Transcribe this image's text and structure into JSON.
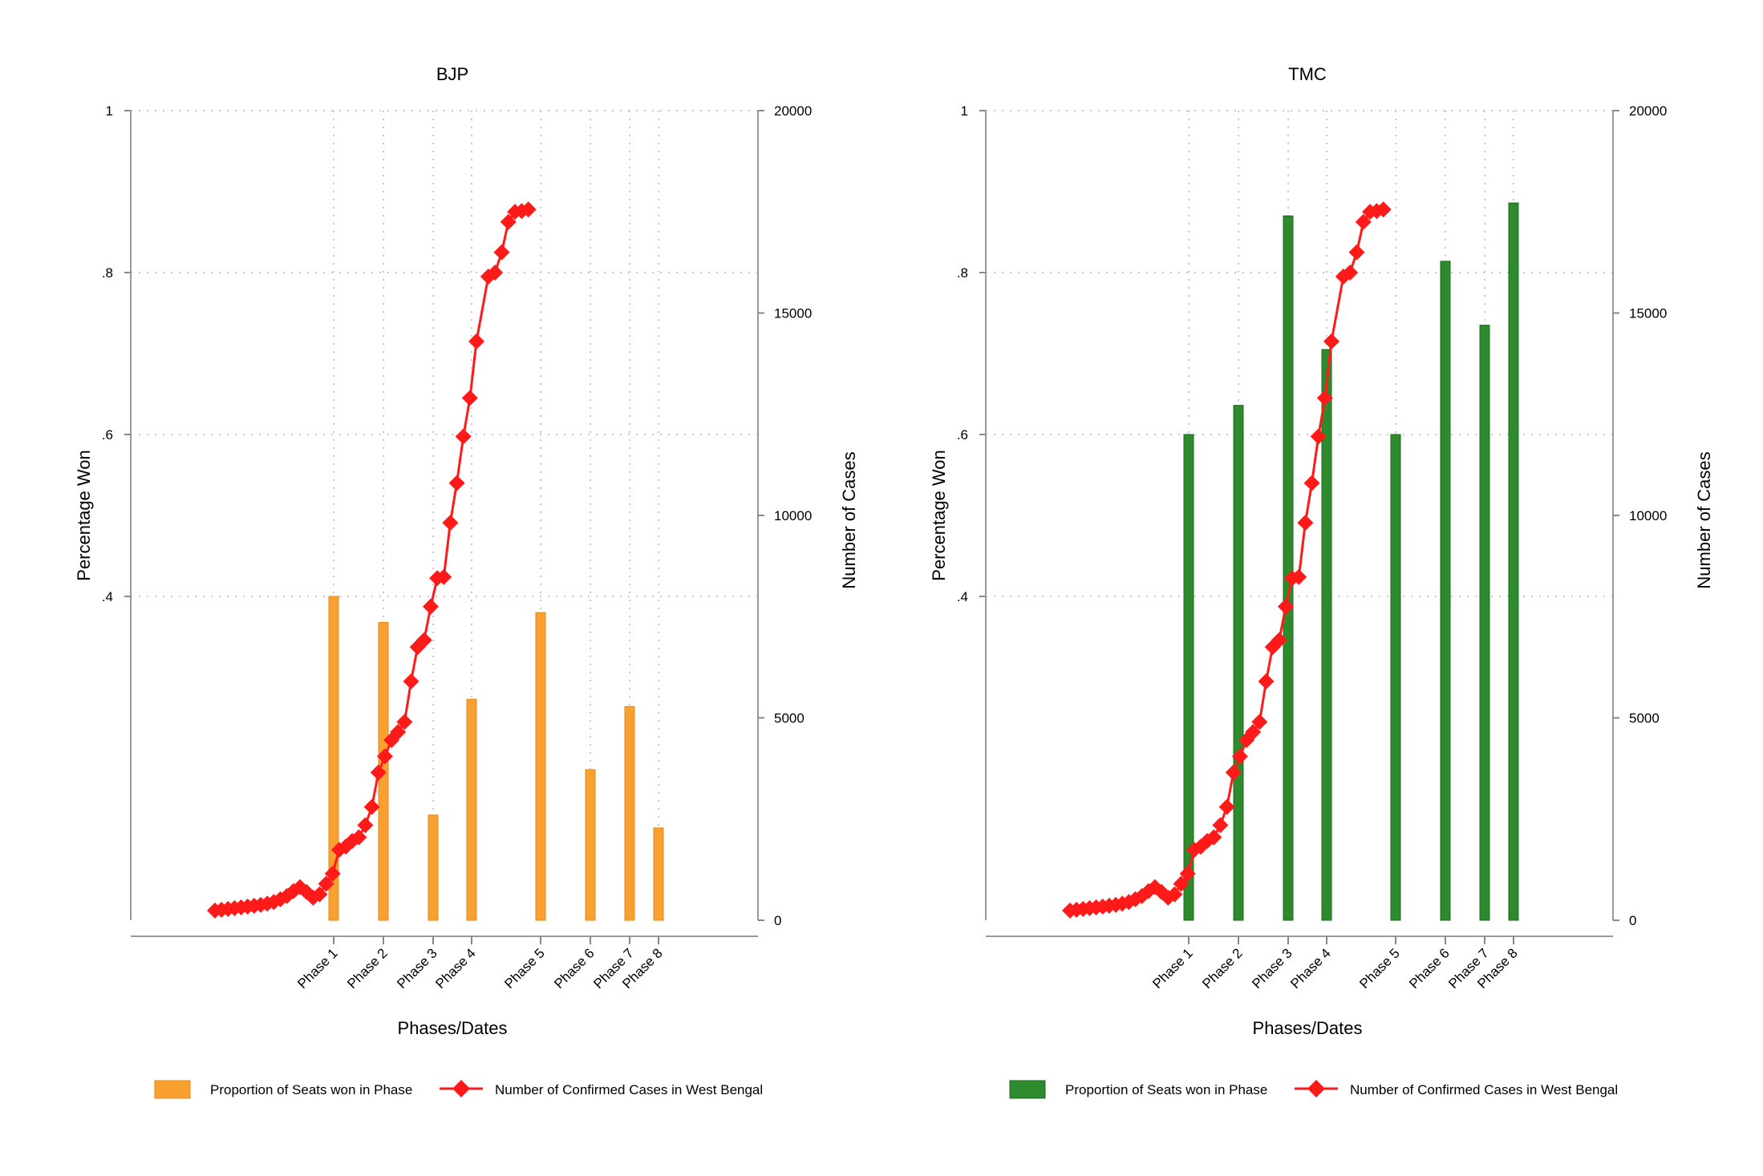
{
  "chart_data": [
    {
      "type": "bar",
      "title": "BJP",
      "xlabel": "Phases/Dates",
      "ylabel": "Percentage Won",
      "y2label": "Number of Cases",
      "ylim": [
        0,
        1
      ],
      "y2lim": [
        0,
        20000
      ],
      "yticks": [
        "1",
        ".8",
        ".6",
        ".4"
      ],
      "y2ticks": [
        "20000",
        "15000",
        "10000",
        "5000",
        "0"
      ],
      "grid": true,
      "legend_position": "bottom",
      "bar_color": "#f9a030",
      "line_color": "#ff1a1a",
      "phases": [
        "Phase 1",
        "Phase 2",
        "Phase 3",
        "Phase 4",
        "Phase 5",
        "Phase 6",
        "Phase 7",
        "Phase 8"
      ],
      "series": [
        {
          "name": "Proportion of Seats won in Phase",
          "kind": "bar",
          "values": [
            0.4,
            0.368,
            0.13,
            0.273,
            0.38,
            0.186,
            0.264,
            0.114
          ]
        },
        {
          "name": "Number of Confirmed Cases in West Bengal",
          "kind": "line",
          "values": [
            240,
            260,
            280,
            300,
            320,
            340,
            360,
            380,
            410,
            450,
            520,
            600,
            720,
            820,
            700,
            560,
            640,
            900,
            1150,
            1740,
            1820,
            1960,
            2050,
            2350,
            2800,
            3650,
            4050,
            4450,
            4650,
            4900,
            5900,
            6750,
            6920,
            7750,
            8450,
            8480,
            9820,
            10800,
            11950,
            12900,
            14300,
            15900,
            16000,
            16500,
            17250,
            17500,
            17520,
            17560
          ]
        }
      ]
    },
    {
      "type": "bar",
      "title": "TMC",
      "xlabel": "Phases/Dates",
      "ylabel": "Percentage Won",
      "y2label": "Number of Cases",
      "ylim": [
        0,
        1
      ],
      "y2lim": [
        0,
        20000
      ],
      "yticks": [
        "1",
        ".8",
        ".6",
        ".4"
      ],
      "y2ticks": [
        "20000",
        "15000",
        "10000",
        "5000",
        "0"
      ],
      "grid": true,
      "legend_position": "bottom",
      "bar_color": "#2d8a2d",
      "line_color": "#ff1a1a",
      "phases": [
        "Phase 1",
        "Phase 2",
        "Phase 3",
        "Phase 4",
        "Phase 5",
        "Phase 6",
        "Phase 7",
        "Phase 8"
      ],
      "series": [
        {
          "name": "Proportion of Seats won in Phase",
          "kind": "bar",
          "values": [
            0.6,
            0.636,
            0.87,
            0.705,
            0.6,
            0.814,
            0.735,
            0.886
          ]
        },
        {
          "name": "Number of Confirmed Cases in West Bengal",
          "kind": "line",
          "values": [
            240,
            260,
            280,
            300,
            320,
            340,
            360,
            380,
            410,
            450,
            520,
            600,
            720,
            820,
            700,
            560,
            640,
            900,
            1150,
            1740,
            1820,
            1960,
            2050,
            2350,
            2800,
            3650,
            4050,
            4450,
            4650,
            4900,
            5900,
            6750,
            6920,
            7750,
            8450,
            8480,
            9820,
            10800,
            11950,
            12900,
            14300,
            15900,
            16000,
            16500,
            17250,
            17500,
            17520,
            17560
          ]
        }
      ]
    }
  ]
}
